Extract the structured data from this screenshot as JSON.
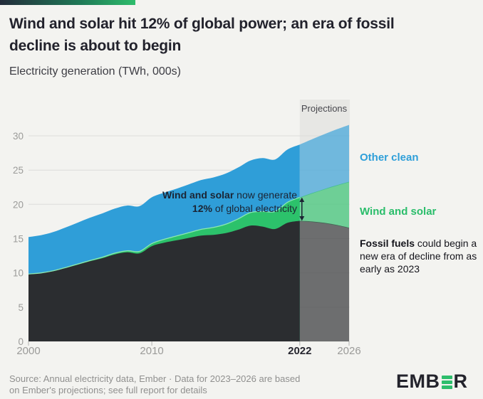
{
  "header": {
    "accent_colors": [
      "#232c3a",
      "#2ebd6c"
    ]
  },
  "chart_data": {
    "type": "area",
    "stacked": true,
    "title": "Wind and solar hit 12% of global power; an era of fossil decline is about to begin",
    "ylabel": "Electricity generation (TWh, 000s)",
    "x": [
      2000,
      2001,
      2002,
      2003,
      2004,
      2005,
      2006,
      2007,
      2008,
      2009,
      2010,
      2011,
      2012,
      2013,
      2014,
      2015,
      2016,
      2017,
      2018,
      2019,
      2020,
      2021,
      2022,
      2023,
      2024,
      2025,
      2026
    ],
    "series": [
      {
        "name": "Fossil fuels",
        "color": "#2b2d30",
        "values": [
          9.8,
          9.95,
          10.25,
          10.7,
          11.2,
          11.7,
          12.15,
          12.7,
          13.0,
          12.85,
          13.9,
          14.4,
          14.75,
          15.1,
          15.45,
          15.55,
          15.8,
          16.3,
          16.9,
          16.75,
          16.4,
          17.3,
          17.6,
          17.5,
          17.3,
          17.0,
          16.6
        ]
      },
      {
        "name": "Wind and solar",
        "color": "#2cc26b",
        "values": [
          0.03,
          0.04,
          0.05,
          0.07,
          0.09,
          0.11,
          0.14,
          0.18,
          0.23,
          0.28,
          0.38,
          0.5,
          0.63,
          0.77,
          0.9,
          1.08,
          1.3,
          1.58,
          1.9,
          2.2,
          2.55,
          3.0,
          3.42,
          4.15,
          4.95,
          5.8,
          6.7
        ]
      },
      {
        "name": "Other clean",
        "color": "#2f9ed8",
        "values": [
          5.4,
          5.5,
          5.65,
          5.85,
          6.05,
          6.25,
          6.4,
          6.5,
          6.6,
          6.6,
          6.75,
          6.8,
          6.9,
          7.05,
          7.2,
          7.3,
          7.4,
          7.5,
          7.6,
          7.8,
          7.6,
          7.7,
          7.7,
          7.85,
          8.0,
          8.15,
          8.3
        ]
      }
    ],
    "projection_start_x": 2022,
    "projection_band_color": "#e7e7e4",
    "projection_fill_opacity": 0.65,
    "grid": true,
    "ylim": [
      0,
      32
    ],
    "yticks": [
      0,
      5,
      10,
      15,
      20,
      25,
      30
    ],
    "xticks": [
      2000,
      2010,
      2022,
      2026
    ],
    "xtick_emphasis": 2022,
    "annotations": {
      "projections_label": "Projections",
      "wind_solar_callout": {
        "bold_lead": "Wind and solar",
        "line1_rest": " now generate",
        "bold2": "12%",
        "line2_rest": " of global electricity"
      },
      "series_label_other_clean": "Other clean",
      "series_label_wind_solar": "Wind and solar",
      "fossil_callout": {
        "bold_lead": "Fossil fuels",
        "rest": " could begin a new era of decline from as early as 2023"
      }
    }
  },
  "footer": {
    "source_line1": "Source: Annual electricity data, Ember · Data for 2023–2026 are based",
    "source_line2": "on Ember's projections; see full report for details",
    "logo_text_1": "EMB",
    "logo_text_2": "R"
  }
}
